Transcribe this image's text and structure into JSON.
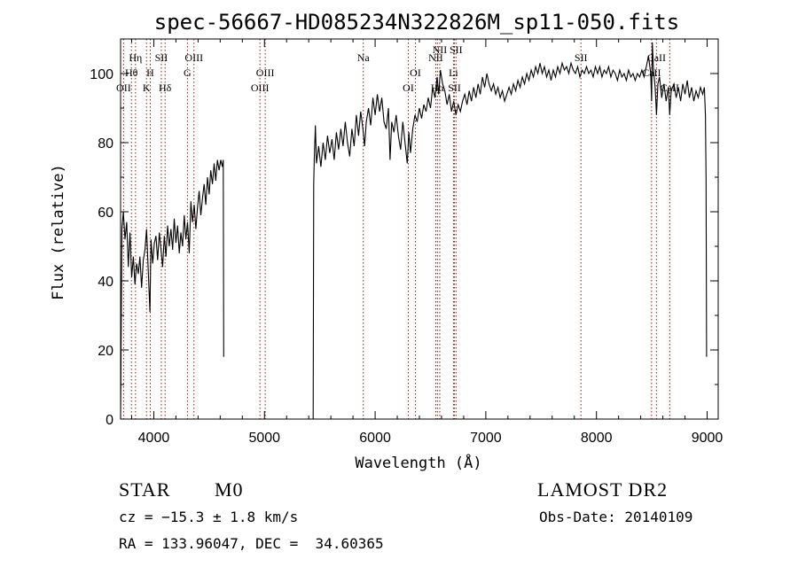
{
  "chart_data": {
    "type": "line",
    "title": "spec-56667-HD085234N322826M_sp11-050.fits",
    "xlabel": "Wavelength (Å)",
    "ylabel": "Flux (relative)",
    "xlim": [
      3700,
      9100
    ],
    "ylim": [
      0,
      110
    ],
    "xticks": [
      4000,
      5000,
      6000,
      7000,
      8000,
      9000
    ],
    "yticks": [
      0,
      20,
      40,
      60,
      80,
      100
    ],
    "grid": false,
    "series": [
      {
        "points": [
          [
            3700,
            0
          ],
          [
            3705,
            22
          ],
          [
            3712,
            55
          ],
          [
            3725,
            60
          ],
          [
            3740,
            52
          ],
          [
            3755,
            57
          ],
          [
            3770,
            44
          ],
          [
            3785,
            54
          ],
          [
            3800,
            41
          ],
          [
            3815,
            47
          ],
          [
            3830,
            39
          ],
          [
            3845,
            45
          ],
          [
            3860,
            42
          ],
          [
            3875,
            47
          ],
          [
            3890,
            38
          ],
          [
            3905,
            46
          ],
          [
            3920,
            49
          ],
          [
            3935,
            55
          ],
          [
            3950,
            43
          ],
          [
            3965,
            31
          ],
          [
            3975,
            52
          ],
          [
            3990,
            45
          ],
          [
            4005,
            51
          ],
          [
            4020,
            53
          ],
          [
            4035,
            46
          ],
          [
            4050,
            54
          ],
          [
            4065,
            49
          ],
          [
            4080,
            44
          ],
          [
            4095,
            53
          ],
          [
            4110,
            47
          ],
          [
            4125,
            56
          ],
          [
            4140,
            50
          ],
          [
            4155,
            55
          ],
          [
            4170,
            49
          ],
          [
            4185,
            58
          ],
          [
            4200,
            51
          ],
          [
            4215,
            56
          ],
          [
            4230,
            48
          ],
          [
            4245,
            54
          ],
          [
            4260,
            50
          ],
          [
            4275,
            59
          ],
          [
            4290,
            52
          ],
          [
            4305,
            57
          ],
          [
            4320,
            48
          ],
          [
            4335,
            63
          ],
          [
            4350,
            57
          ],
          [
            4365,
            62
          ],
          [
            4380,
            55
          ],
          [
            4395,
            61
          ],
          [
            4410,
            66
          ],
          [
            4425,
            59
          ],
          [
            4440,
            64
          ],
          [
            4455,
            68
          ],
          [
            4470,
            62
          ],
          [
            4485,
            70
          ],
          [
            4500,
            65
          ],
          [
            4515,
            72
          ],
          [
            4530,
            68
          ],
          [
            4545,
            74
          ],
          [
            4560,
            69
          ],
          [
            4575,
            75
          ],
          [
            4590,
            72
          ],
          [
            4605,
            75
          ],
          [
            4620,
            73
          ],
          [
            4628,
            75
          ],
          [
            4632,
            18
          ],
          [
            5440,
            0
          ],
          [
            5445,
            68
          ],
          [
            5450,
            75
          ],
          [
            5460,
            85
          ],
          [
            5470,
            74
          ],
          [
            5490,
            79
          ],
          [
            5510,
            73
          ],
          [
            5530,
            80
          ],
          [
            5550,
            75
          ],
          [
            5570,
            82
          ],
          [
            5590,
            77
          ],
          [
            5610,
            81
          ],
          [
            5630,
            75
          ],
          [
            5650,
            83
          ],
          [
            5670,
            78
          ],
          [
            5690,
            84
          ],
          [
            5710,
            79
          ],
          [
            5730,
            86
          ],
          [
            5750,
            80
          ],
          [
            5770,
            76
          ],
          [
            5790,
            84
          ],
          [
            5810,
            79
          ],
          [
            5830,
            88
          ],
          [
            5850,
            82
          ],
          [
            5870,
            89
          ],
          [
            5890,
            84
          ],
          [
            5905,
            79
          ],
          [
            5920,
            86
          ],
          [
            5940,
            90
          ],
          [
            5960,
            85
          ],
          [
            5980,
            93
          ],
          [
            6000,
            88
          ],
          [
            6020,
            94
          ],
          [
            6040,
            89
          ],
          [
            6060,
            93
          ],
          [
            6080,
            86
          ],
          [
            6100,
            84
          ],
          [
            6120,
            90
          ],
          [
            6135,
            75
          ],
          [
            6150,
            86
          ],
          [
            6170,
            83
          ],
          [
            6190,
            88
          ],
          [
            6210,
            82
          ],
          [
            6230,
            78
          ],
          [
            6250,
            86
          ],
          [
            6270,
            80
          ],
          [
            6290,
            74
          ],
          [
            6305,
            83
          ],
          [
            6320,
            77
          ],
          [
            6340,
            84
          ],
          [
            6360,
            88
          ],
          [
            6380,
            86
          ],
          [
            6400,
            90
          ],
          [
            6420,
            87
          ],
          [
            6440,
            91
          ],
          [
            6460,
            89
          ],
          [
            6480,
            93
          ],
          [
            6500,
            90
          ],
          [
            6520,
            96
          ],
          [
            6540,
            93
          ],
          [
            6560,
            99
          ],
          [
            6575,
            94
          ],
          [
            6590,
            101
          ],
          [
            6610,
            97
          ],
          [
            6630,
            95
          ],
          [
            6650,
            91
          ],
          [
            6670,
            94
          ],
          [
            6690,
            89
          ],
          [
            6710,
            92
          ],
          [
            6730,
            88
          ],
          [
            6750,
            91
          ],
          [
            6770,
            89
          ],
          [
            6790,
            92
          ],
          [
            6810,
            94
          ],
          [
            6830,
            91
          ],
          [
            6850,
            95
          ],
          [
            6870,
            92
          ],
          [
            6890,
            96
          ],
          [
            6910,
            93
          ],
          [
            6930,
            97
          ],
          [
            6950,
            94
          ],
          [
            6970,
            99
          ],
          [
            6990,
            96
          ],
          [
            7010,
            100
          ],
          [
            7030,
            97
          ],
          [
            7050,
            95
          ],
          [
            7070,
            97
          ],
          [
            7090,
            94
          ],
          [
            7110,
            96
          ],
          [
            7130,
            93
          ],
          [
            7150,
            95
          ],
          [
            7170,
            92
          ],
          [
            7190,
            94
          ],
          [
            7210,
            96
          ],
          [
            7230,
            94
          ],
          [
            7250,
            97
          ],
          [
            7270,
            95
          ],
          [
            7290,
            98
          ],
          [
            7310,
            96
          ],
          [
            7330,
            99
          ],
          [
            7350,
            97
          ],
          [
            7370,
            100
          ],
          [
            7390,
            98
          ],
          [
            7410,
            101
          ],
          [
            7430,
            99
          ],
          [
            7450,
            102
          ],
          [
            7470,
            100
          ],
          [
            7490,
            103
          ],
          [
            7510,
            100
          ],
          [
            7530,
            102
          ],
          [
            7550,
            99
          ],
          [
            7570,
            101
          ],
          [
            7590,
            98
          ],
          [
            7610,
            101
          ],
          [
            7630,
            99
          ],
          [
            7650,
            102
          ],
          [
            7670,
            100
          ],
          [
            7690,
            103
          ],
          [
            7710,
            101
          ],
          [
            7730,
            102
          ],
          [
            7750,
            100
          ],
          [
            7770,
            103
          ],
          [
            7790,
            101
          ],
          [
            7810,
            100
          ],
          [
            7830,
            102
          ],
          [
            7850,
            99
          ],
          [
            7870,
            101
          ],
          [
            7890,
            100
          ],
          [
            7910,
            102
          ],
          [
            7930,
            100
          ],
          [
            7950,
            101
          ],
          [
            7970,
            99
          ],
          [
            7990,
            102
          ],
          [
            8010,
            100
          ],
          [
            8030,
            102
          ],
          [
            8050,
            99
          ],
          [
            8070,
            101
          ],
          [
            8090,
            100
          ],
          [
            8110,
            102
          ],
          [
            8130,
            99
          ],
          [
            8150,
            101
          ],
          [
            8170,
            100
          ],
          [
            8190,
            98
          ],
          [
            8210,
            101
          ],
          [
            8230,
            99
          ],
          [
            8250,
            100
          ],
          [
            8270,
            98
          ],
          [
            8290,
            101
          ],
          [
            8310,
            99
          ],
          [
            8330,
            100
          ],
          [
            8350,
            98
          ],
          [
            8370,
            100
          ],
          [
            8390,
            99
          ],
          [
            8410,
            101
          ],
          [
            8430,
            99
          ],
          [
            8450,
            102
          ],
          [
            8470,
            105
          ],
          [
            8490,
            100
          ],
          [
            8498,
            92
          ],
          [
            8505,
            109
          ],
          [
            8515,
            101
          ],
          [
            8530,
            96
          ],
          [
            8542,
            88
          ],
          [
            8555,
            97
          ],
          [
            8570,
            99
          ],
          [
            8590,
            93
          ],
          [
            8610,
            97
          ],
          [
            8630,
            92
          ],
          [
            8650,
            96
          ],
          [
            8662,
            88
          ],
          [
            8675,
            95
          ],
          [
            8700,
            97
          ],
          [
            8720,
            93
          ],
          [
            8740,
            96
          ],
          [
            8760,
            92
          ],
          [
            8780,
            97
          ],
          [
            8800,
            94
          ],
          [
            8820,
            98
          ],
          [
            8840,
            93
          ],
          [
            8860,
            96
          ],
          [
            8880,
            92
          ],
          [
            8900,
            95
          ],
          [
            8920,
            93
          ],
          [
            8940,
            96
          ],
          [
            8960,
            94
          ],
          [
            8975,
            96
          ],
          [
            8985,
            88
          ],
          [
            8990,
            70
          ],
          [
            8995,
            18
          ]
        ]
      }
    ],
    "line_markers": [
      {
        "label": "OII",
        "wavelength": 3727,
        "row": 3
      },
      {
        "label": "Hθ",
        "wavelength": 3798,
        "row": 2
      },
      {
        "label": "Hη",
        "wavelength": 3835,
        "row": 1
      },
      {
        "label": "K",
        "wavelength": 3934,
        "row": 3
      },
      {
        "label": "H",
        "wavelength": 3968,
        "row": 2
      },
      {
        "label": "SII",
        "wavelength": 4068,
        "row": 1
      },
      {
        "label": "Hδ",
        "wavelength": 4102,
        "row": 3
      },
      {
        "label": "G",
        "wavelength": 4304,
        "row": 2
      },
      {
        "label": "OIII",
        "wavelength": 4363,
        "row": 1
      },
      {
        "label": "OIII",
        "wavelength": 4959,
        "row": 3
      },
      {
        "label": "OIII",
        "wavelength": 5007,
        "row": 2
      },
      {
        "label": "Na",
        "wavelength": 5893,
        "row": 1
      },
      {
        "label": "OI",
        "wavelength": 6300,
        "row": 3
      },
      {
        "label": "OI",
        "wavelength": 6364,
        "row": 2
      },
      {
        "label": "NII",
        "wavelength": 6548,
        "row": 1
      },
      {
        "label": "Hα",
        "wavelength": 6563,
        "row": 3
      },
      {
        "label": "NII",
        "wavelength": 6584,
        "row": 0
      },
      {
        "label": "Li",
        "wavelength": 6708,
        "row": 2
      },
      {
        "label": "SII",
        "wavelength": 6717,
        "row": 3
      },
      {
        "label": "SII",
        "wavelength": 6731,
        "row": 0
      },
      {
        "label": "SII",
        "wavelength": 7860,
        "row": 1
      },
      {
        "label": "CaII",
        "wavelength": 8498,
        "row": 2
      },
      {
        "label": "CaII",
        "wavelength": 8542,
        "row": 1
      },
      {
        "label": "CaII",
        "wavelength": 8662,
        "row": 3
      }
    ]
  },
  "info": {
    "class": "STAR",
    "subclass": "M0",
    "survey": "LAMOST DR2",
    "redshift": "cz = −15.3 ± 1.8 km/s",
    "obs_date": "Obs-Date: 20140109",
    "coords": "RA = 133.96047, DEC =  34.60365"
  },
  "colors": {
    "spectrum": "#000000",
    "marker_line": "#8b1a1a",
    "axis": "#000000"
  }
}
